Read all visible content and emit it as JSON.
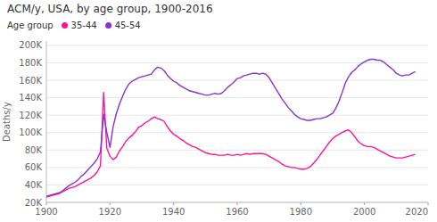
{
  "chart_data": {
    "type": "line",
    "title": "ACM/y, USA, by age group, 1900-2016",
    "legend_title": "Age group",
    "ylabel": "Deaths/y",
    "x": [
      1900,
      1901,
      1902,
      1903,
      1904,
      1905,
      1906,
      1907,
      1908,
      1909,
      1910,
      1911,
      1912,
      1913,
      1914,
      1915,
      1916,
      1917,
      1918,
      1919,
      1920,
      1921,
      1922,
      1923,
      1924,
      1925,
      1926,
      1927,
      1928,
      1929,
      1930,
      1931,
      1932,
      1933,
      1934,
      1935,
      1936,
      1937,
      1938,
      1939,
      1940,
      1941,
      1942,
      1943,
      1944,
      1945,
      1946,
      1947,
      1948,
      1949,
      1950,
      1951,
      1952,
      1953,
      1954,
      1955,
      1956,
      1957,
      1958,
      1959,
      1960,
      1961,
      1962,
      1963,
      1964,
      1965,
      1966,
      1967,
      1968,
      1969,
      1970,
      1971,
      1972,
      1973,
      1974,
      1975,
      1976,
      1977,
      1978,
      1979,
      1980,
      1981,
      1982,
      1983,
      1984,
      1985,
      1986,
      1987,
      1988,
      1989,
      1990,
      1991,
      1992,
      1993,
      1994,
      1995,
      1996,
      1997,
      1998,
      1999,
      2000,
      2001,
      2002,
      2003,
      2004,
      2005,
      2006,
      2007,
      2008,
      2009,
      2010,
      2011,
      2012,
      2013,
      2014,
      2015,
      2016
    ],
    "series": [
      {
        "name": "35-44",
        "color": "#ff1493",
        "values": [
          26000,
          27000,
          28000,
          29000,
          30000,
          32000,
          34000,
          36000,
          37000,
          38000,
          40000,
          42000,
          44000,
          46000,
          48000,
          51000,
          55000,
          62000,
          146000,
          82000,
          73000,
          69000,
          72000,
          79000,
          84000,
          90000,
          94000,
          97000,
          101000,
          106000,
          108000,
          111000,
          113000,
          116000,
          118000,
          116000,
          115000,
          113000,
          107000,
          102000,
          98000,
          96000,
          93000,
          91000,
          88000,
          86000,
          84000,
          83000,
          81000,
          79000,
          77000,
          76000,
          75000,
          75000,
          74000,
          74000,
          74000,
          75000,
          74000,
          74000,
          75000,
          74000,
          75000,
          76000,
          75000,
          76000,
          76000,
          76000,
          76000,
          75000,
          73000,
          71000,
          69000,
          67000,
          64000,
          62000,
          61000,
          60000,
          60000,
          59000,
          58000,
          58000,
          59000,
          61000,
          65000,
          69000,
          74000,
          79000,
          84000,
          89000,
          93000,
          96000,
          98000,
          100000,
          102000,
          103000,
          100000,
          95000,
          90000,
          87000,
          85000,
          84000,
          84000,
          83000,
          81000,
          79000,
          77000,
          75000,
          73000,
          72000,
          71000,
          71000,
          71000,
          72000,
          73000,
          74000,
          75000
        ]
      },
      {
        "name": "45-54",
        "color": "#8833cc",
        "values": [
          27000,
          28000,
          29000,
          30000,
          31000,
          33000,
          36000,
          39000,
          41000,
          43000,
          46000,
          50000,
          53000,
          57000,
          61000,
          65000,
          70000,
          78000,
          121000,
          100000,
          83000,
          107000,
          122000,
          133000,
          142000,
          150000,
          156000,
          159000,
          161000,
          163000,
          164000,
          165000,
          166000,
          167000,
          172000,
          175000,
          174000,
          171000,
          166000,
          162000,
          159000,
          157000,
          154000,
          152000,
          150000,
          148000,
          147000,
          146000,
          145000,
          144000,
          143000,
          143000,
          144000,
          145000,
          144000,
          145000,
          148000,
          152000,
          155000,
          158000,
          162000,
          163000,
          165000,
          166000,
          167000,
          168000,
          168000,
          167000,
          168000,
          167000,
          163000,
          157000,
          151000,
          145000,
          139000,
          134000,
          129000,
          125000,
          121000,
          118000,
          116000,
          115000,
          114000,
          114000,
          115000,
          116000,
          116000,
          117000,
          118000,
          120000,
          122000,
          128000,
          136000,
          146000,
          157000,
          164000,
          169000,
          172000,
          176000,
          179000,
          181000,
          183000,
          184000,
          184000,
          183000,
          183000,
          181000,
          178000,
          175000,
          172000,
          168000,
          166000,
          165000,
          166000,
          166000,
          168000,
          170000
        ]
      }
    ],
    "xlim": [
      1900,
      2020
    ],
    "xticks": [
      1900,
      1920,
      1940,
      1960,
      1980,
      2000,
      2020
    ],
    "ylim": [
      20000,
      205000
    ],
    "yticks": [
      {
        "value": 20000,
        "label": "20K"
      },
      {
        "value": 40000,
        "label": "40K"
      },
      {
        "value": 60000,
        "label": "60K"
      },
      {
        "value": 80000,
        "label": "80K"
      },
      {
        "value": 100000,
        "label": "100K"
      },
      {
        "value": 120000,
        "label": "120K"
      },
      {
        "value": 140000,
        "label": "140K"
      },
      {
        "value": 160000,
        "label": "160K"
      },
      {
        "value": 180000,
        "label": "180K"
      },
      {
        "value": 200000,
        "label": "200K"
      }
    ],
    "grid": true,
    "legend": "top left"
  }
}
